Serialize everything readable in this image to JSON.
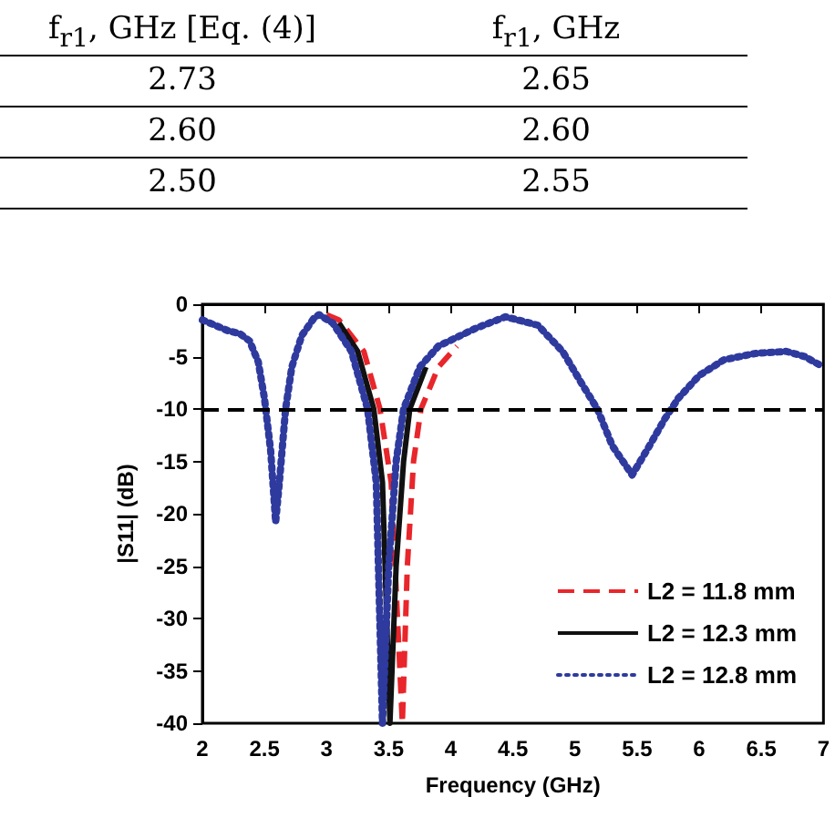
{
  "chart_data": {
    "type": "line",
    "xlabel": "Frequency (GHz)",
    "ylabel": "|S11| (dB)",
    "annotations": [
      "f$_{r1}$, GHz [Eq. (4)]",
      "f$_{r1}$, GHz",
      "2.73",
      "2.65",
      "2.60",
      "2.60",
      "2.50",
      "2.55"
    ],
    "xlim": [
      2,
      7
    ],
    "xticks": [
      2,
      2.5,
      3,
      3.5,
      4,
      4.5,
      5,
      5.5,
      6,
      6.5,
      7
    ],
    "ylim": [
      -40,
      0
    ],
    "yticks": [
      0,
      -5,
      -10,
      -15,
      -20,
      -25,
      -30,
      -35,
      -40
    ],
    "grid": false,
    "legend": "bottom right",
    "marker": "none",
    "ref_lines": [
      {
        "axis": "y",
        "value": -10,
        "color": "#000000",
        "line_style": "dashed"
      }
    ],
    "series": [
      {
        "name": "L2 = 11.8 mm",
        "color": "#e8262b",
        "line_style": "dashed",
        "x": [
          3.0,
          3.1,
          3.3,
          3.43,
          3.52,
          3.61,
          3.65,
          3.7,
          3.76,
          3.9,
          4.05
        ],
        "values": [
          -1,
          -1.5,
          -4.5,
          -10,
          -17,
          -40,
          -25,
          -15,
          -10,
          -6,
          -4
        ]
      },
      {
        "name": "L2 = 12.3 mm",
        "color": "#111111",
        "line_style": "solid",
        "x": [
          3.1,
          3.25,
          3.38,
          3.45,
          3.51,
          3.56,
          3.62,
          3.67,
          3.8
        ],
        "values": [
          -1.8,
          -4.5,
          -10,
          -17,
          -40,
          -25,
          -15,
          -10,
          -6
        ]
      },
      {
        "name": "L2 = 12.8 mm",
        "color": "#2e3a9e",
        "line_style": "dotted",
        "x": [
          2,
          2.1,
          2.2,
          2.3,
          2.38,
          2.45,
          2.5,
          2.55,
          2.59,
          2.62,
          2.67,
          2.72,
          2.8,
          2.9,
          2.94,
          3.05,
          3.2,
          3.33,
          3.4,
          3.45,
          3.5,
          3.56,
          3.62,
          3.75,
          3.9,
          4.2,
          4.44,
          4.7,
          4.9,
          5.05,
          5.18,
          5.3,
          5.46,
          5.6,
          5.72,
          5.83,
          6.0,
          6.2,
          6.45,
          6.7,
          6.85,
          7
        ],
        "values": [
          -1.5,
          -2,
          -2.5,
          -2.8,
          -3.5,
          -5.5,
          -9,
          -14,
          -20.8,
          -17,
          -10,
          -6,
          -3,
          -1.3,
          -1,
          -1.8,
          -4.5,
          -10,
          -17,
          -40,
          -25,
          -15,
          -10,
          -6,
          -4,
          -2.3,
          -1.2,
          -2,
          -4.5,
          -7.5,
          -10,
          -13.5,
          -16.3,
          -13.5,
          -11,
          -9,
          -6.8,
          -5.3,
          -4.7,
          -4.5,
          -5,
          -6
        ]
      }
    ]
  }
}
